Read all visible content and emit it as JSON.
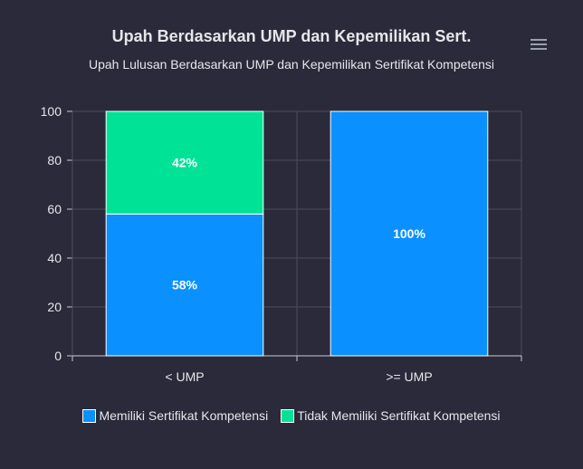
{
  "title": "Upah Berdasarkan UMP dan Kepemilikan Sert.",
  "subtitle": "Upah Lulusan Berdasarkan UMP dan Kepemilikan Sertifikat Kompetensi",
  "menu_icon": "hamburger-menu-icon",
  "colors": {
    "background": "#2a2a3a",
    "grid": "#4a4d5c",
    "axis": "#c7c9d1",
    "series_1": "#0a90ff",
    "series_2": "#00e396"
  },
  "chart_data": {
    "type": "bar",
    "stacked": true,
    "categories": [
      "< UMP",
      ">= UMP"
    ],
    "series": [
      {
        "name": "Memiliki Sertifikat Kompetensi",
        "values": [
          58,
          100
        ],
        "labels": [
          "58%",
          "100%"
        ]
      },
      {
        "name": "Tidak Memiliki Sertifikat Kompetensi",
        "values": [
          42,
          0
        ],
        "labels": [
          "42%",
          ""
        ]
      }
    ],
    "ylim": [
      0,
      100
    ],
    "yticks": [
      "0",
      "20",
      "40",
      "60",
      "80",
      "100"
    ],
    "grid": true,
    "legend": "bottom-center"
  }
}
